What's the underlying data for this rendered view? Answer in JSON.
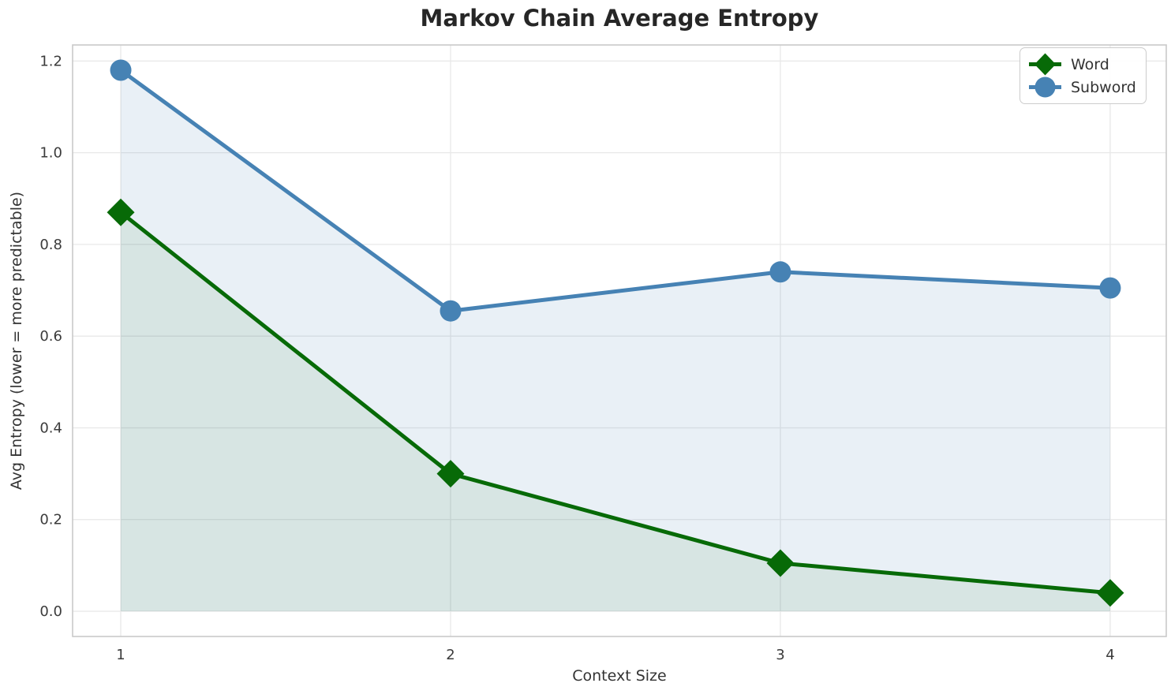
{
  "chart_data": {
    "type": "line",
    "title": "Markov Chain Average Entropy",
    "xlabel": "Context Size",
    "ylabel": "Avg Entropy (lower = more predictable)",
    "x": [
      1,
      2,
      3,
      4
    ],
    "x_tick_labels": [
      "1",
      "2",
      "3",
      "4"
    ],
    "y_tick_values": [
      0.0,
      0.2,
      0.4,
      0.6,
      0.8,
      1.0,
      1.2
    ],
    "y_tick_labels": [
      "0.0",
      "0.2",
      "0.4",
      "0.6",
      "0.8",
      "1.0",
      "1.2"
    ],
    "xlim": [
      0.854,
      4.17
    ],
    "ylim": [
      -0.055,
      1.235
    ],
    "grid": true,
    "legend_position": "upper right",
    "area_fill_baseline": 0.0,
    "series": [
      {
        "name": "Subword",
        "marker": "circle",
        "color": "#4682b4",
        "fill_color": "rgba(70,130,180,0.12)",
        "values": [
          1.18,
          0.655,
          0.74,
          0.705
        ]
      },
      {
        "name": "Word",
        "marker": "diamond",
        "color": "#076a07",
        "fill_color": "rgba(7,106,7,0.08)",
        "values": [
          0.87,
          0.3,
          0.105,
          0.04
        ]
      }
    ]
  },
  "legend": {
    "items": [
      {
        "label": "Word"
      },
      {
        "label": "Subword"
      }
    ]
  },
  "colors": {
    "title_text": "#262626",
    "axis_text": "#333333",
    "tick_text": "#3b3b3b",
    "grid_line": "#e8e8e8",
    "spine": "#c9c9c9",
    "word_green": "#076a07",
    "subword_blue": "#4682b4",
    "background": "#ffffff"
  }
}
